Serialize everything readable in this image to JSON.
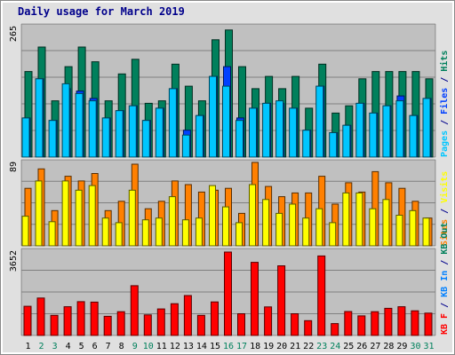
{
  "chart_data": [
    {
      "type": "bar",
      "title": "Daily usage for March 2019",
      "ylabel_segments": [
        {
          "text": "Pages",
          "color": "#00c6ff"
        },
        {
          "text": " / ",
          "color": "#00008b"
        },
        {
          "text": "Files",
          "color": "#0040ff"
        },
        {
          "text": " / ",
          "color": "#00008b"
        },
        {
          "text": "Hits",
          "color": "#00805c"
        }
      ],
      "ymax_label": "265",
      "ylim": [
        0,
        265
      ],
      "grid": true,
      "categories": [
        "1",
        "2",
        "3",
        "4",
        "5",
        "6",
        "7",
        "8",
        "9",
        "10",
        "11",
        "12",
        "13",
        "14",
        "15",
        "16",
        "17",
        "18",
        "19",
        "20",
        "21",
        "22",
        "23",
        "24",
        "25",
        "26",
        "27",
        "28",
        "29",
        "30",
        "31"
      ],
      "weekend_days": [
        "2",
        "3",
        "9",
        "10",
        "16",
        "17",
        "23",
        "24",
        "30",
        "31"
      ],
      "series": [
        {
          "name": "Hits",
          "color": "#00805c",
          "values": [
            175,
            225,
            115,
            185,
            225,
            195,
            115,
            170,
            200,
            110,
            115,
            190,
            145,
            115,
            240,
            260,
            185,
            140,
            165,
            140,
            165,
            100,
            190,
            90,
            105,
            160,
            175,
            175,
            175,
            175,
            160
          ]
        },
        {
          "name": "Files",
          "color": "#0040ff",
          "values": [
            80,
            160,
            75,
            140,
            135,
            120,
            80,
            95,
            105,
            75,
            100,
            140,
            55,
            85,
            165,
            185,
            80,
            100,
            110,
            110,
            100,
            55,
            145,
            50,
            65,
            110,
            90,
            105,
            125,
            85,
            120
          ]
        },
        {
          "name": "Pages",
          "color": "#00c6ff",
          "values": [
            80,
            160,
            75,
            150,
            130,
            115,
            80,
            95,
            105,
            75,
            100,
            140,
            45,
            85,
            165,
            145,
            75,
            100,
            110,
            115,
            100,
            55,
            145,
            50,
            65,
            110,
            90,
            105,
            115,
            85,
            120
          ]
        }
      ]
    },
    {
      "type": "bar",
      "ylabel_segments": [
        {
          "text": "Sites",
          "color": "#ff8000"
        },
        {
          "text": " / ",
          "color": "#00008b"
        },
        {
          "text": "Visits",
          "color": "#ffff00"
        }
      ],
      "ymax_label": "89",
      "ylim": [
        0,
        89
      ],
      "grid": true,
      "series": [
        {
          "name": "Visits",
          "color": "#ffff00",
          "values": [
            32,
            70,
            26,
            70,
            60,
            65,
            30,
            25,
            60,
            28,
            30,
            53,
            28,
            30,
            65,
            42,
            25,
            66,
            50,
            35,
            45,
            30,
            40,
            25,
            57,
            57,
            40,
            50,
            33,
            38,
            30
          ]
        },
        {
          "name": "Sites",
          "color": "#ff8000",
          "values": [
            62,
            83,
            38,
            75,
            70,
            78,
            38,
            48,
            88,
            40,
            48,
            70,
            66,
            58,
            60,
            62,
            35,
            90,
            64,
            53,
            57,
            57,
            75,
            45,
            68,
            58,
            80,
            68,
            62,
            48,
            30
          ]
        }
      ]
    },
    {
      "type": "bar",
      "ylabel_segments": [
        {
          "text": "KB F",
          "color": "#ff0000"
        },
        {
          "text": " / ",
          "color": "#00008b"
        },
        {
          "text": "KB In",
          "color": "#0080ff"
        },
        {
          "text": " / ",
          "color": "#00008b"
        },
        {
          "text": "KB Out",
          "color": "#00805c"
        }
      ],
      "ymax_label": "3652",
      "ylim": [
        0,
        3652
      ],
      "grid": true,
      "series": [
        {
          "name": "KB F",
          "color": "#ff0000",
          "values": [
            1280,
            1640,
            880,
            1260,
            1480,
            1460,
            840,
            1040,
            2180,
            900,
            1160,
            1390,
            1750,
            880,
            1470,
            3652,
            950,
            3200,
            1250,
            3050,
            950,
            650,
            3480,
            520,
            1050,
            860,
            1040,
            1190,
            1260,
            1080,
            980
          ]
        }
      ]
    }
  ]
}
